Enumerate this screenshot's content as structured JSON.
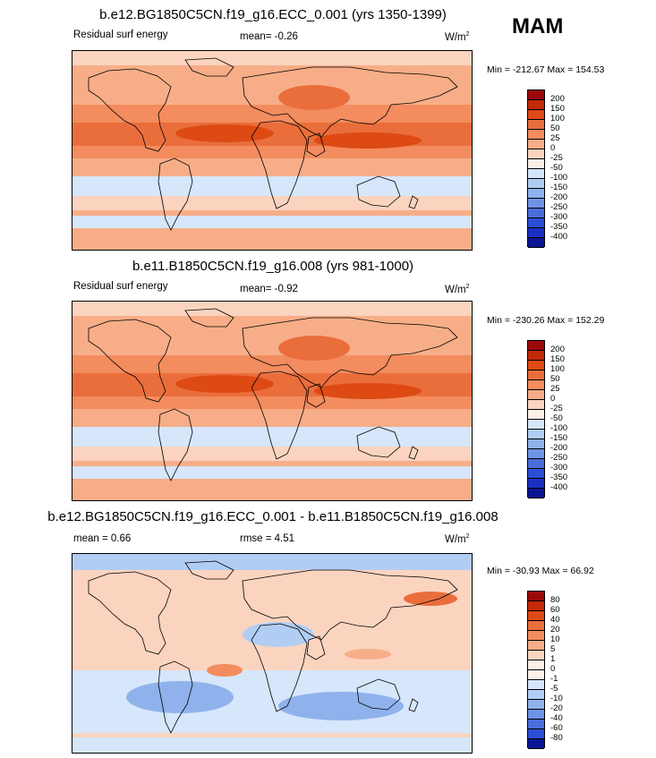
{
  "season": "MAM",
  "chart_data": [
    {
      "type": "heatmap",
      "title": "b.e12.BG1850C5CN.f19_g16.ECC_0.001 (yrs 1350-1399)",
      "left_label": "Residual surf energy",
      "stat_text": "mean=  -0.26",
      "units_base": "W/m",
      "units_exp": "2",
      "minmax": "Min = -212.67 Max = 154.53",
      "colorbar_labels": [
        "200",
        "150",
        "100",
        "50",
        "25",
        "0",
        "-25",
        "-50",
        "-100",
        "-150",
        "-200",
        "-250",
        "-300",
        "-350",
        "-400"
      ],
      "colorbar_colors": [
        "#9b0a0a",
        "#c42a08",
        "#dd4a14",
        "#ea6e3c",
        "#f38c5e",
        "#f7ae88",
        "#fbd4c0",
        "#fdf0e8",
        "#d6e6fb",
        "#b2cdf3",
        "#8fb2ec",
        "#6f93e6",
        "#4a6ddb",
        "#2b4ed6",
        "#1a2fc4",
        "#0a1593"
      ]
    },
    {
      "type": "heatmap",
      "title": "b.e11.B1850C5CN.f19_g16.008 (yrs 981-1000)",
      "left_label": "Residual surf energy",
      "stat_text": "mean=  -0.92",
      "units_base": "W/m",
      "units_exp": "2",
      "minmax": "Min = -230.26 Max = 152.29",
      "colorbar_labels": [
        "200",
        "150",
        "100",
        "50",
        "25",
        "0",
        "-25",
        "-50",
        "-100",
        "-150",
        "-200",
        "-250",
        "-300",
        "-350",
        "-400"
      ],
      "colorbar_colors": [
        "#9b0a0a",
        "#c42a08",
        "#dd4a14",
        "#ea6e3c",
        "#f38c5e",
        "#f7ae88",
        "#fbd4c0",
        "#fdf0e8",
        "#d6e6fb",
        "#b2cdf3",
        "#8fb2ec",
        "#6f93e6",
        "#4a6ddb",
        "#2b4ed6",
        "#1a2fc4",
        "#0a1593"
      ]
    },
    {
      "type": "heatmap",
      "title": "b.e12.BG1850C5CN.f19_g16.ECC_0.001 - b.e11.B1850C5CN.f19_g16.008",
      "left_label": "mean =  0.66",
      "stat_text": "rmse =   4.51",
      "units_base": "W/m",
      "units_exp": "2",
      "minmax": "Min = -30.93 Max = 66.92",
      "colorbar_labels": [
        "80",
        "60",
        "40",
        "20",
        "10",
        "5",
        "1",
        "0",
        "-1",
        "-5",
        "-10",
        "-20",
        "-40",
        "-60",
        "-80"
      ],
      "colorbar_colors": [
        "#9b0a0a",
        "#c42a08",
        "#dd4a14",
        "#ea6e3c",
        "#f38c5e",
        "#f7ae88",
        "#fbd4c0",
        "#fdf0e8",
        "#fdf0e8",
        "#d6e6fb",
        "#b2cdf3",
        "#8fb2ec",
        "#6f93e6",
        "#4a6ddb",
        "#2b4ed6",
        "#0a1593"
      ]
    }
  ]
}
